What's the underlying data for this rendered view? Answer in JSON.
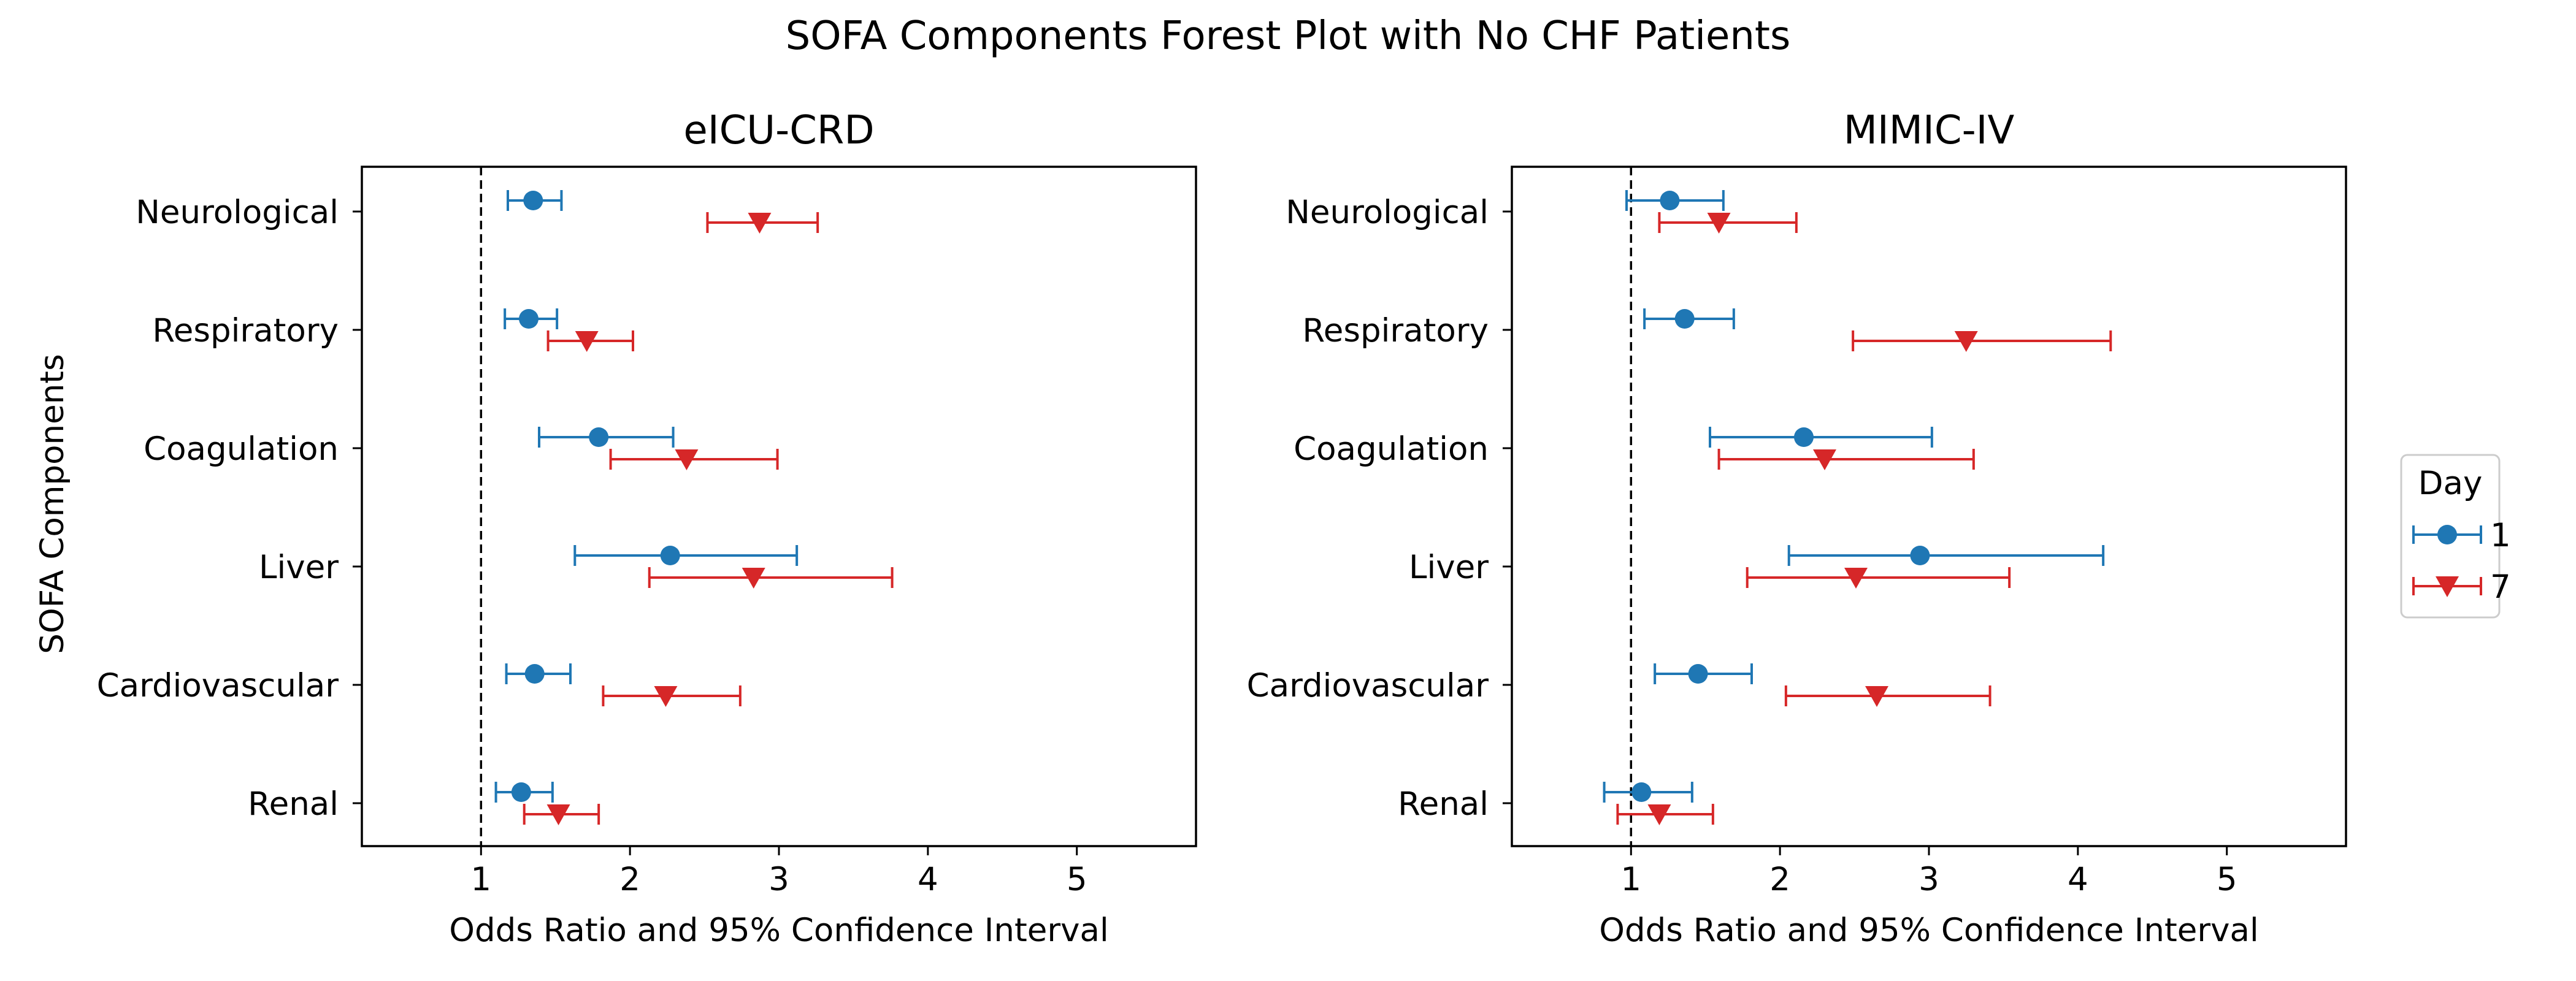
{
  "figure": {
    "suptitle": "SOFA Components Forest Plot with No CHF Patients",
    "ylabel": "SOFA Components"
  },
  "legend": {
    "title": "Day",
    "placement": "center-right outside",
    "entries": [
      {
        "label": "1",
        "color": "#1f77b4",
        "marker": "circle"
      },
      {
        "label": "7",
        "color": "#d62728",
        "marker": "triangle-down"
      }
    ]
  },
  "chart_data": [
    {
      "type": "forest",
      "title": "eICU-CRD",
      "xlabel": "Odds Ratio and 95% Confidence Interval",
      "ylabel": "SOFA Components",
      "xlim": [
        0.2,
        5.8
      ],
      "xticks": [
        1,
        2,
        3,
        4,
        5
      ],
      "reference_line": 1,
      "categories": [
        "Neurological",
        "Respiratory",
        "Coagulation",
        "Liver",
        "Cardiovascular",
        "Renal"
      ],
      "series": [
        {
          "name": "1",
          "color": "#1f77b4",
          "marker": "circle",
          "or": [
            1.35,
            1.32,
            1.79,
            2.27,
            1.36,
            1.27
          ],
          "lower": [
            1.18,
            1.16,
            1.39,
            1.63,
            1.17,
            1.1
          ],
          "upper": [
            1.54,
            1.51,
            2.29,
            3.12,
            1.6,
            1.48
          ]
        },
        {
          "name": "7",
          "color": "#d62728",
          "marker": "triangle-down",
          "or": [
            2.87,
            1.71,
            2.38,
            2.83,
            2.24,
            1.52
          ],
          "lower": [
            2.52,
            1.45,
            1.87,
            2.13,
            1.82,
            1.29
          ],
          "upper": [
            3.26,
            2.02,
            2.99,
            3.76,
            2.74,
            1.79
          ]
        }
      ]
    },
    {
      "type": "forest",
      "title": "MIMIC-IV",
      "xlabel": "Odds Ratio and 95% Confidence Interval",
      "xlim": [
        0.2,
        5.8
      ],
      "xticks": [
        1,
        2,
        3,
        4,
        5
      ],
      "reference_line": 1,
      "categories": [
        "Neurological",
        "Respiratory",
        "Coagulation",
        "Liver",
        "Cardiovascular",
        "Renal"
      ],
      "series": [
        {
          "name": "1",
          "color": "#1f77b4",
          "marker": "circle",
          "or": [
            1.26,
            1.36,
            2.16,
            2.94,
            1.45,
            1.07
          ],
          "lower": [
            0.97,
            1.09,
            1.53,
            2.06,
            1.16,
            0.82
          ],
          "upper": [
            1.62,
            1.69,
            3.02,
            4.17,
            1.81,
            1.41
          ]
        },
        {
          "name": "7",
          "color": "#d62728",
          "marker": "triangle-down",
          "or": [
            1.59,
            3.25,
            2.3,
            2.51,
            2.65,
            1.19
          ],
          "lower": [
            1.19,
            2.49,
            1.59,
            1.78,
            2.04,
            0.91
          ],
          "upper": [
            2.11,
            4.22,
            3.3,
            3.54,
            3.41,
            1.55
          ]
        }
      ]
    }
  ]
}
